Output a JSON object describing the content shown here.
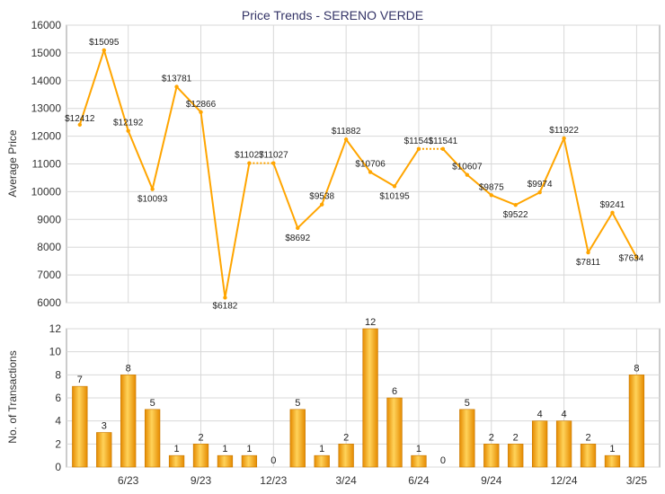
{
  "chart_data": [
    {
      "type": "line",
      "title": "Price Trends - SERENO VERDE",
      "ylabel": "Average Price",
      "ylim": [
        6000,
        16000
      ],
      "yticks": [
        6000,
        7000,
        8000,
        9000,
        10000,
        11000,
        12000,
        13000,
        14000,
        15000,
        16000
      ],
      "grid": true,
      "color": "#FFA500",
      "values": [
        12412,
        15095,
        12192,
        10093,
        13781,
        12866,
        6182,
        11027,
        11027,
        8692,
        9538,
        11882,
        10706,
        10195,
        11541,
        11541,
        10607,
        9875,
        9522,
        9974,
        11922,
        7811,
        9241,
        7634
      ],
      "labels": [
        "$12412",
        "$15095",
        "$12192",
        "$10093",
        "$13781",
        "$12866",
        "$6182",
        "$11027",
        "$11027",
        "$8692",
        "$9538",
        "$11882",
        "$10706",
        "$10195",
        "$11541",
        "$11541",
        "$10607",
        "$9875",
        "$9522",
        "$9974",
        "$11922",
        "$7811",
        "$9241",
        "$7634"
      ]
    },
    {
      "type": "bar",
      "ylabel": "No. of Transactions",
      "ylim": [
        0,
        12
      ],
      "yticks": [
        0,
        2,
        4,
        6,
        8,
        10,
        12
      ],
      "grid": true,
      "color": "#F5A623",
      "values": [
        7,
        3,
        8,
        5,
        1,
        2,
        1,
        1,
        0,
        5,
        1,
        2,
        12,
        6,
        1,
        0,
        5,
        2,
        2,
        4,
        4,
        2,
        1,
        8
      ],
      "xtick_labels": [
        "6/23",
        "9/23",
        "12/23",
        "3/24",
        "6/24",
        "9/24",
        "12/24",
        "3/25"
      ]
    }
  ]
}
